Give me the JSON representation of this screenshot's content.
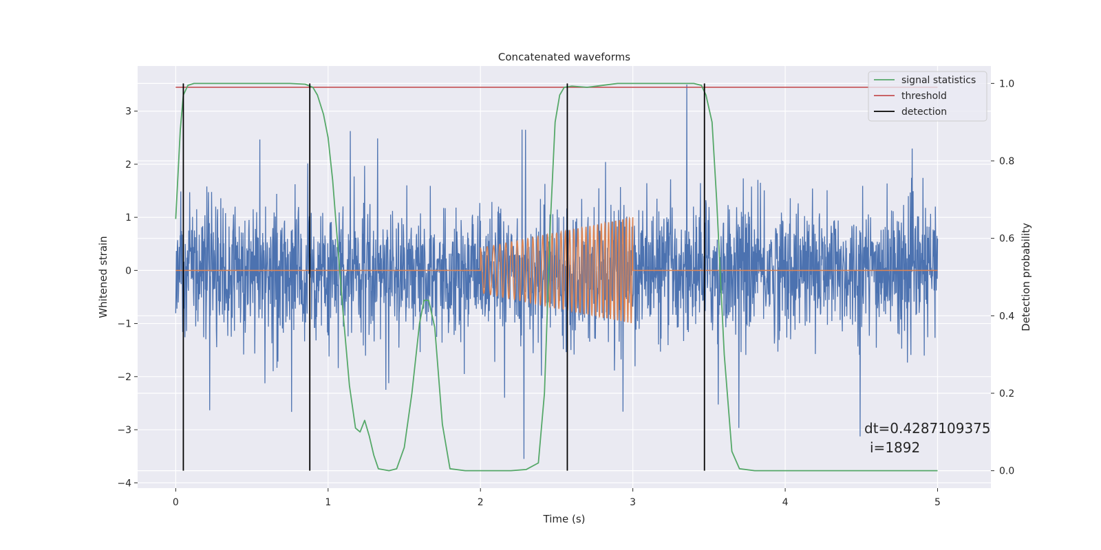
{
  "chart_data": {
    "type": "line",
    "title": "Concatenated waveforms",
    "xlabel": "Time (s)",
    "ylabel": "Whitened strain",
    "ylabel_right": "Detection probability",
    "xlim": [
      -0.25,
      5.35
    ],
    "ylim": [
      -4.1,
      3.85
    ],
    "ylim_right": [
      -0.045,
      1.045
    ],
    "x_ticks": [
      0,
      1,
      2,
      3,
      4,
      5
    ],
    "y_ticks": [
      -4,
      -3,
      -2,
      -1,
      0,
      1,
      2,
      3
    ],
    "y_ticks_right": [
      0.0,
      0.2,
      0.4,
      0.6,
      0.8,
      1.0
    ],
    "grid": true,
    "legend_position": "top-right",
    "colors": {
      "strain": "#4c72b0",
      "waveform": "#dd8452",
      "signal_statistics": "#55a868",
      "threshold": "#c44e52",
      "detection": "#000000",
      "axes_bg": "#eaeaf2"
    },
    "series": [
      {
        "name": "signal statistics",
        "axis": "right",
        "x": [
          0.0,
          0.03,
          0.05,
          0.08,
          0.12,
          0.2,
          0.4,
          0.6,
          0.75,
          0.85,
          0.9,
          0.93,
          0.97,
          1.0,
          1.03,
          1.06,
          1.1,
          1.14,
          1.18,
          1.21,
          1.24,
          1.27,
          1.3,
          1.33,
          1.4,
          1.45,
          1.5,
          1.55,
          1.6,
          1.63,
          1.66,
          1.7,
          1.75,
          1.8,
          1.9,
          2.0,
          2.1,
          2.2,
          2.3,
          2.38,
          2.42,
          2.46,
          2.49,
          2.52,
          2.55,
          2.6,
          2.7,
          2.8,
          2.9,
          3.0,
          3.2,
          3.4,
          3.45,
          3.48,
          3.52,
          3.55,
          3.6,
          3.65,
          3.7,
          3.8,
          3.9,
          4.0,
          4.3,
          4.6,
          5.0
        ],
        "values": [
          0.65,
          0.88,
          0.97,
          0.995,
          1.0,
          1.0,
          1.0,
          1.0,
          1.0,
          0.998,
          0.99,
          0.97,
          0.92,
          0.86,
          0.75,
          0.6,
          0.4,
          0.22,
          0.11,
          0.1,
          0.13,
          0.09,
          0.04,
          0.005,
          0.0,
          0.005,
          0.06,
          0.2,
          0.38,
          0.44,
          0.44,
          0.37,
          0.12,
          0.005,
          0.0,
          0.0,
          0.0,
          0.0,
          0.003,
          0.02,
          0.2,
          0.65,
          0.9,
          0.97,
          0.99,
          0.993,
          0.99,
          0.995,
          1.0,
          1.0,
          1.0,
          1.0,
          0.995,
          0.97,
          0.9,
          0.7,
          0.3,
          0.05,
          0.005,
          0.0,
          0.0,
          0.0,
          0.0,
          0.0,
          0.0
        ]
      },
      {
        "name": "threshold",
        "axis": "right",
        "x": [
          0.0,
          5.0
        ],
        "values": [
          0.99,
          0.99
        ]
      },
      {
        "name": "detection",
        "axis": "right",
        "type": "vlines",
        "x": [
          0.05,
          0.88,
          2.57,
          3.47
        ],
        "y_range": [
          0.0,
          1.0
        ]
      }
    ],
    "noise": {
      "x_range": [
        0.0,
        5.0
      ],
      "sigma": 0.6,
      "peak_min": -3.55,
      "peak_max": 3.5
    },
    "injected_waveform": {
      "x_range": [
        2.0,
        3.0
      ],
      "amplitude_start": 0.42,
      "amplitude_end": 1.0
    },
    "annotation": {
      "line1": "dt=0.4287109375",
      "line2": "i=1892"
    }
  }
}
